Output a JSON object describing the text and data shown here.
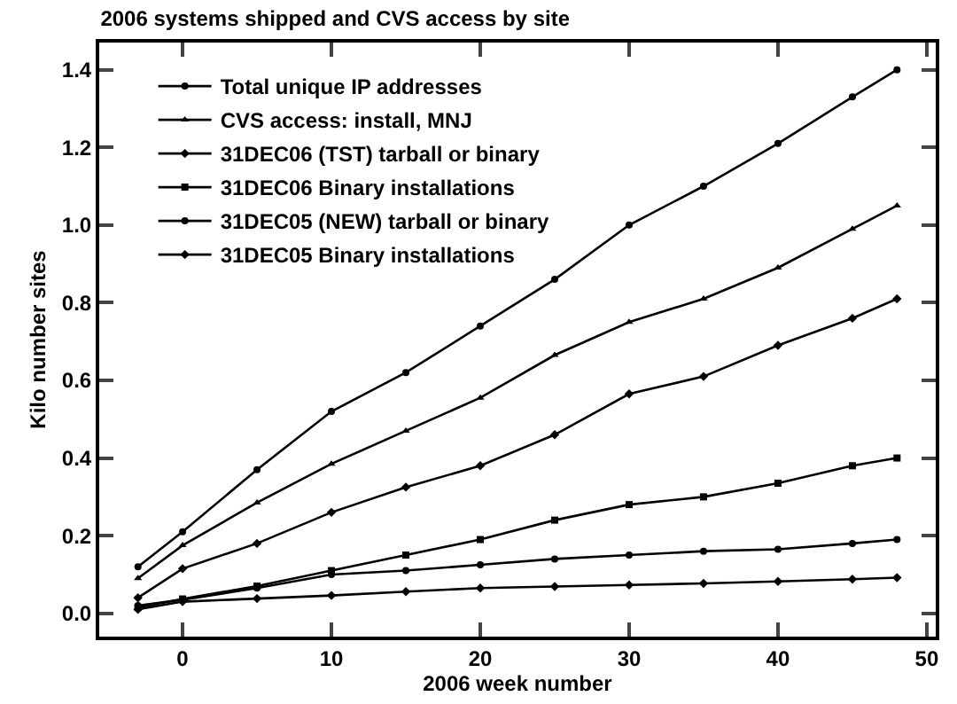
{
  "chart_data": {
    "type": "line",
    "title": "2006 systems shipped and CVS access by site",
    "xlabel": "2006 week number",
    "ylabel": "Kilo number sites",
    "x": [
      -3,
      0,
      5,
      10,
      15,
      20,
      25,
      30,
      35,
      40,
      45,
      48
    ],
    "series": [
      {
        "name": "Total unique IP addresses",
        "color": "#000000",
        "marker": "circle",
        "values": [
          0.12,
          0.21,
          0.37,
          0.52,
          0.62,
          0.74,
          0.86,
          1.0,
          1.1,
          1.21,
          1.33,
          1.4
        ]
      },
      {
        "name": "CVS access: install, MNJ",
        "color": "#000000",
        "marker": "triangle",
        "values": [
          0.09,
          0.175,
          0.285,
          0.385,
          0.47,
          0.555,
          0.665,
          0.75,
          0.81,
          0.89,
          0.99,
          1.05
        ]
      },
      {
        "name": "31DEC06 (TST) tarball or binary",
        "color": "#000000",
        "marker": "diamond",
        "values": [
          0.04,
          0.115,
          0.18,
          0.26,
          0.325,
          0.38,
          0.46,
          0.565,
          0.61,
          0.69,
          0.76,
          0.81
        ]
      },
      {
        "name": "31DEC06 Binary installations",
        "color": "#000000",
        "marker": "square",
        "values": [
          0.015,
          0.037,
          0.07,
          0.11,
          0.15,
          0.19,
          0.24,
          0.28,
          0.3,
          0.335,
          0.38,
          0.4
        ]
      },
      {
        "name": "31DEC05 (NEW) tarball or binary",
        "color": "#000000",
        "marker": "circle",
        "values": [
          0.02,
          0.035,
          0.065,
          0.1,
          0.11,
          0.125,
          0.14,
          0.15,
          0.16,
          0.165,
          0.18,
          0.19
        ]
      },
      {
        "name": "31DEC05 Binary installations",
        "color": "#000000",
        "marker": "diamond",
        "values": [
          0.01,
          0.03,
          0.038,
          0.046,
          0.056,
          0.065,
          0.069,
          0.073,
          0.077,
          0.082,
          0.088,
          0.092
        ]
      }
    ],
    "xlim": [
      -5.6,
      50.6
    ],
    "xticks": [
      0,
      10,
      20,
      30,
      40,
      50
    ],
    "ylim": [
      -0.06,
      1.47
    ],
    "yticks": [
      {
        "value": 0,
        "label": "0.0"
      },
      0.2,
      0.4,
      0.6,
      0.8,
      {
        "value": 1,
        "label": "1.0"
      },
      1.2,
      1.4
    ],
    "grid": false,
    "legend": "top left",
    "line_style": "solid"
  }
}
